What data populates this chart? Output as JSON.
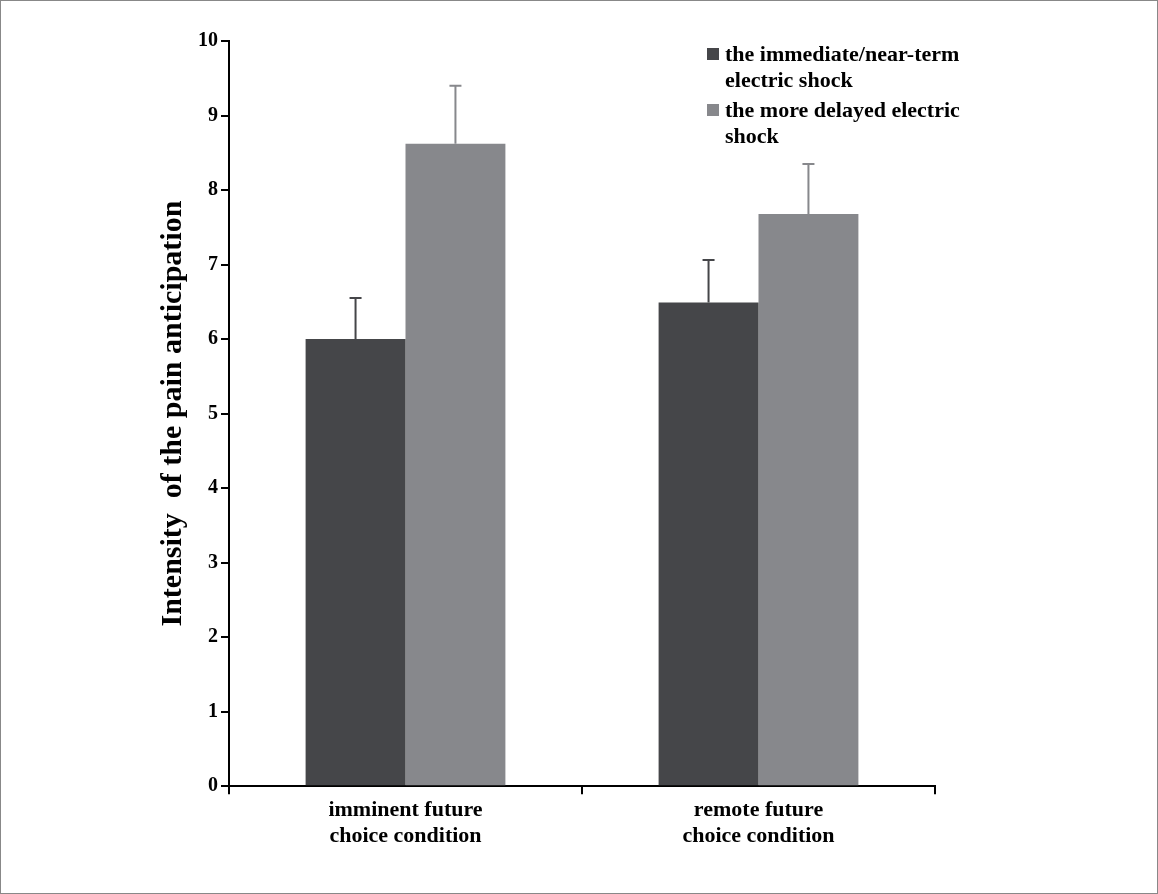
{
  "chart_data": {
    "type": "bar",
    "ylabel": "Intensity  of the pain anticipation",
    "categories": [
      "imminent future choice condition",
      "remote future choice condition"
    ],
    "series": [
      {
        "name": "the immediate/near-term electric shock",
        "color": "#454649",
        "values": [
          6.0,
          6.49
        ],
        "errors": [
          0.55,
          0.57
        ]
      },
      {
        "name": "the more delayed electric shock",
        "color": "#87888c",
        "values": [
          8.62,
          7.68
        ],
        "errors": [
          0.78,
          0.67
        ]
      }
    ],
    "ylim": [
      0,
      10
    ],
    "yticks": [
      0,
      1,
      2,
      3,
      4,
      5,
      6,
      7,
      8,
      9,
      10
    ],
    "grid": false,
    "legend": "top right"
  }
}
